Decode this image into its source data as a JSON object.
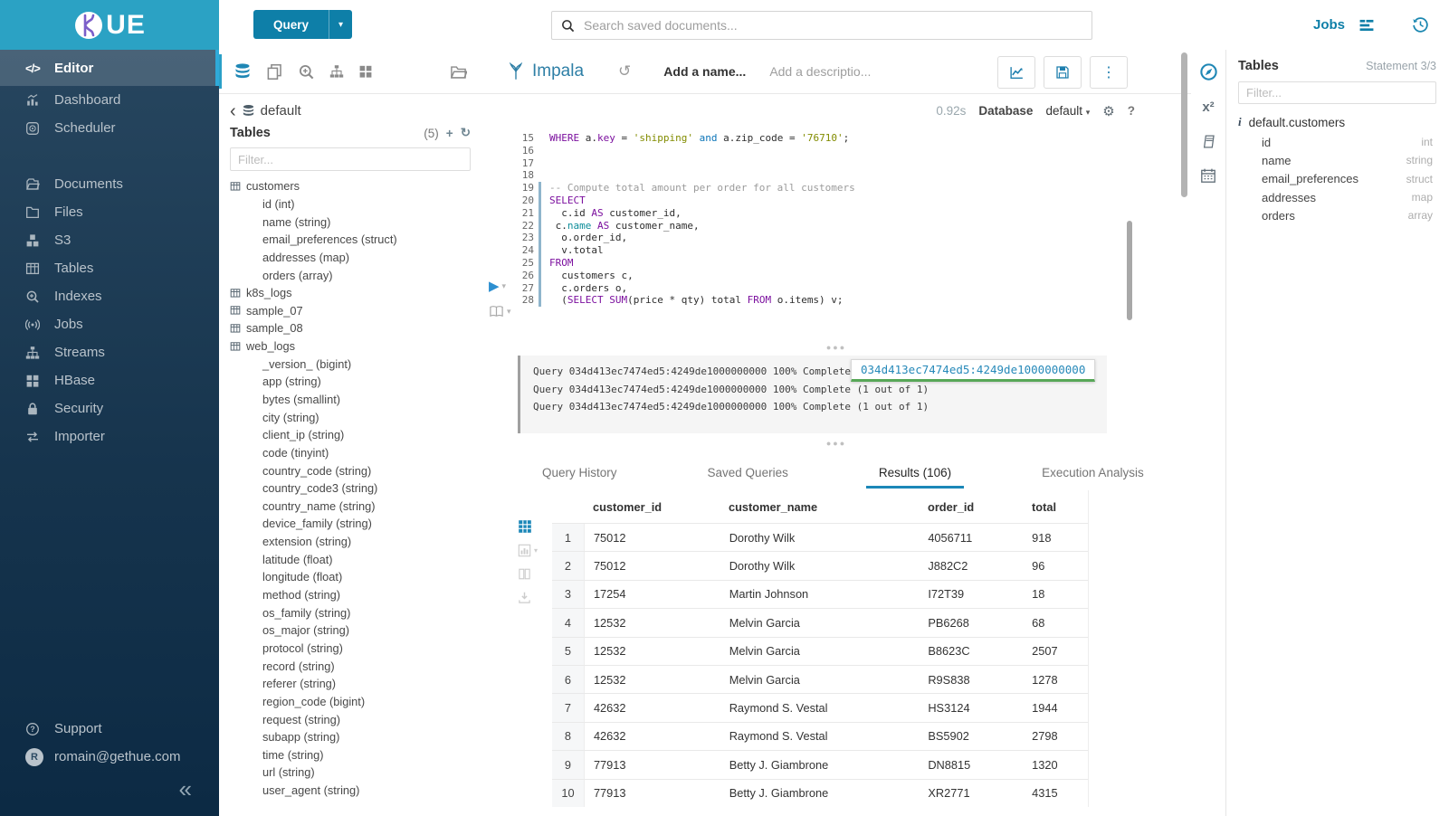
{
  "topbar": {
    "query_label": "Query",
    "query_caret": "▾",
    "search_placeholder": "Search saved documents...",
    "jobs_label": "Jobs"
  },
  "logo": {
    "text": "UE"
  },
  "sidebar": {
    "items": [
      {
        "label": "Editor",
        "icon": "code",
        "state": "active"
      },
      {
        "label": "Dashboard",
        "icon": "dashboard",
        "state": ""
      },
      {
        "label": "Scheduler",
        "icon": "scheduler",
        "state": ""
      },
      {
        "label": "",
        "icon": "",
        "state": "gap"
      },
      {
        "label": "Documents",
        "icon": "documents",
        "state": ""
      },
      {
        "label": "Files",
        "icon": "files",
        "state": ""
      },
      {
        "label": "S3",
        "icon": "s3",
        "state": ""
      },
      {
        "label": "Tables",
        "icon": "tables",
        "state": ""
      },
      {
        "label": "Indexes",
        "icon": "indexes",
        "state": ""
      },
      {
        "label": "Jobs",
        "icon": "jobs",
        "state": ""
      },
      {
        "label": "Streams",
        "icon": "streams",
        "state": ""
      },
      {
        "label": "HBase",
        "icon": "hbase",
        "state": ""
      },
      {
        "label": "Security",
        "icon": "security",
        "state": ""
      },
      {
        "label": "Importer",
        "icon": "importer",
        "state": ""
      }
    ],
    "support_label": "Support",
    "user_email": "romain@gethue.com",
    "user_initial": "R",
    "collapse_glyph": "«"
  },
  "assist": {
    "icons": [
      {
        "icon": "database",
        "state": "active"
      },
      {
        "icon": "copy",
        "state": ""
      },
      {
        "icon": "zoomplus",
        "state": ""
      },
      {
        "icon": "streams",
        "state": ""
      },
      {
        "icon": "hbase",
        "state": ""
      },
      {
        "icon": "foldero",
        "state": "right"
      }
    ],
    "back_glyph": "‹",
    "database_name": "default",
    "tables_label": "Tables",
    "tables_count": "(5)",
    "plus_glyph": "+",
    "refresh_glyph": "↻",
    "filter_placeholder": "Filter...",
    "tree": [
      {
        "label": "customers",
        "icon": "tablegrid",
        "kind": "tbl"
      },
      {
        "label": "id (int)",
        "kind": "col"
      },
      {
        "label": "name (string)",
        "kind": "col"
      },
      {
        "label": "email_preferences (struct)",
        "kind": "col"
      },
      {
        "label": "addresses (map)",
        "kind": "col"
      },
      {
        "label": "orders (array)",
        "kind": "col"
      },
      {
        "label": "k8s_logs",
        "icon": "tablegrid",
        "kind": "tbl"
      },
      {
        "label": "sample_07",
        "icon": "tablegrid",
        "kind": "tbl"
      },
      {
        "label": "sample_08",
        "icon": "tablegrid",
        "kind": "tbl"
      },
      {
        "label": "web_logs",
        "icon": "tablegrid",
        "kind": "tbl"
      },
      {
        "label": "_version_ (bigint)",
        "kind": "col"
      },
      {
        "label": "app (string)",
        "kind": "col"
      },
      {
        "label": "bytes (smallint)",
        "kind": "col"
      },
      {
        "label": "city (string)",
        "kind": "col"
      },
      {
        "label": "client_ip (string)",
        "kind": "col"
      },
      {
        "label": "code (tinyint)",
        "kind": "col"
      },
      {
        "label": "country_code (string)",
        "kind": "col"
      },
      {
        "label": "country_code3 (string)",
        "kind": "col"
      },
      {
        "label": "country_name (string)",
        "kind": "col"
      },
      {
        "label": "device_family (string)",
        "kind": "col"
      },
      {
        "label": "extension (string)",
        "kind": "col"
      },
      {
        "label": "latitude (float)",
        "kind": "col"
      },
      {
        "label": "longitude (float)",
        "kind": "col"
      },
      {
        "label": "method (string)",
        "kind": "col"
      },
      {
        "label": "os_family (string)",
        "kind": "col"
      },
      {
        "label": "os_major (string)",
        "kind": "col"
      },
      {
        "label": "protocol (string)",
        "kind": "col"
      },
      {
        "label": "record (string)",
        "kind": "col"
      },
      {
        "label": "referer (string)",
        "kind": "col"
      },
      {
        "label": "region_code (bigint)",
        "kind": "col"
      },
      {
        "label": "request (string)",
        "kind": "col"
      },
      {
        "label": "subapp (string)",
        "kind": "col"
      },
      {
        "label": "time (string)",
        "kind": "col"
      },
      {
        "label": "url (string)",
        "kind": "col"
      },
      {
        "label": "user_agent (string)",
        "kind": "col"
      }
    ]
  },
  "editor": {
    "engine": "Impala",
    "history_glyph": "↺",
    "name_placeholder": "Add a name...",
    "desc_placeholder": "Add a descriptio...",
    "kebab_glyph": "⋮",
    "duration": "0.92s",
    "database_label": "Database",
    "database_value": "default",
    "database_caret": "▾",
    "gear_glyph": "⚙",
    "help_glyph": "?",
    "run_glyph": "▶",
    "caret_glyph": "▾",
    "handle_glyph": "●●●",
    "lines": [
      {
        "no": "15",
        "stmt": "",
        "tokens": [
          {
            "t": "WHERE",
            "c": "kw"
          },
          {
            "t": " a.",
            "c": "p"
          },
          {
            "t": "key",
            "c": "kw"
          },
          {
            "t": " = ",
            "c": "p"
          },
          {
            "t": "'shipping'",
            "c": "str"
          },
          {
            "t": " ",
            "c": "p"
          },
          {
            "t": "and",
            "c": "kw2"
          },
          {
            "t": " a.zip_code = ",
            "c": "p"
          },
          {
            "t": "'76710'",
            "c": "str"
          },
          {
            "t": ";",
            "c": "p"
          }
        ]
      },
      {
        "no": "16",
        "stmt": "",
        "tokens": []
      },
      {
        "no": "17",
        "stmt": "",
        "tokens": []
      },
      {
        "no": "18",
        "stmt": "",
        "tokens": []
      },
      {
        "no": "19",
        "stmt": "stmt",
        "tokens": [
          {
            "t": "-- Compute total amount per order for all customers",
            "c": "com"
          }
        ]
      },
      {
        "no": "20",
        "stmt": "stmt",
        "tokens": [
          {
            "t": "SELECT",
            "c": "kw"
          }
        ]
      },
      {
        "no": "21",
        "stmt": "stmt",
        "tokens": [
          {
            "t": "  c.id ",
            "c": "p"
          },
          {
            "t": "AS",
            "c": "kw"
          },
          {
            "t": " customer_id,",
            "c": "p"
          }
        ]
      },
      {
        "no": "22",
        "stmt": "stmt",
        "tokens": [
          {
            "t": " c.",
            "c": "p"
          },
          {
            "t": "name",
            "c": "fn"
          },
          {
            "t": " ",
            "c": "p"
          },
          {
            "t": "AS",
            "c": "kw"
          },
          {
            "t": " customer_name,",
            "c": "p"
          }
        ]
      },
      {
        "no": "23",
        "stmt": "stmt",
        "tokens": [
          {
            "t": "  o.order_id,",
            "c": "p"
          }
        ]
      },
      {
        "no": "24",
        "stmt": "stmt",
        "tokens": [
          {
            "t": "  v.total",
            "c": "p"
          }
        ]
      },
      {
        "no": "25",
        "stmt": "stmt",
        "tokens": [
          {
            "t": "FROM",
            "c": "kw"
          }
        ]
      },
      {
        "no": "26",
        "stmt": "stmt",
        "tokens": [
          {
            "t": "  customers c,",
            "c": "p"
          }
        ]
      },
      {
        "no": "27",
        "stmt": "stmt",
        "tokens": [
          {
            "t": "  c.orders o,",
            "c": "p"
          }
        ]
      },
      {
        "no": "28",
        "stmt": "stmt",
        "tokens": [
          {
            "t": "  (",
            "c": "p"
          },
          {
            "t": "SELECT",
            "c": "kw"
          },
          {
            "t": " ",
            "c": "p"
          },
          {
            "t": "SUM",
            "c": "kw"
          },
          {
            "t": "(price * qty) total ",
            "c": "p"
          },
          {
            "t": "FROM",
            "c": "kw"
          },
          {
            "t": " o.items) v;",
            "c": "p"
          }
        ]
      }
    ]
  },
  "log": {
    "lines": [
      {
        "text": "Query 034d413ec7474ed5:4249de1000000000 100% Complete (1 out of 1)"
      },
      {
        "text": "Query 034d413ec7474ed5:4249de1000000000 100% Complete (1 out of 1)"
      },
      {
        "text": "Query 034d413ec7474ed5:4249de1000000000 100% Complete (1 out of 1)"
      }
    ],
    "tooltip": "034d413ec7474ed5:4249de1000000000"
  },
  "tabs": [
    {
      "label": "Query History",
      "state": ""
    },
    {
      "label": "Saved Queries",
      "state": ""
    },
    {
      "label": "Results (106)",
      "state": "active"
    },
    {
      "label": "Execution Analysis",
      "state": ""
    }
  ],
  "results": {
    "rail": [
      {
        "icon": "gridblue",
        "state": "active",
        "caret": ""
      },
      {
        "icon": "chartsm",
        "state": "",
        "caret": "▾"
      },
      {
        "icon": "columnsicon",
        "state": "",
        "caret": ""
      },
      {
        "icon": "downloadicon",
        "state": "",
        "caret": ""
      }
    ],
    "columns": [
      "customer_id",
      "customer_name",
      "order_id",
      "total"
    ],
    "rows": [
      {
        "n": "1",
        "customer_id": "75012",
        "customer_name": "Dorothy Wilk",
        "order_id": "4056711",
        "total": "918"
      },
      {
        "n": "2",
        "customer_id": "75012",
        "customer_name": "Dorothy Wilk",
        "order_id": "J882C2",
        "total": "96"
      },
      {
        "n": "3",
        "customer_id": "17254",
        "customer_name": "Martin Johnson",
        "order_id": "I72T39",
        "total": "18"
      },
      {
        "n": "4",
        "customer_id": "12532",
        "customer_name": "Melvin Garcia",
        "order_id": "PB6268",
        "total": "68"
      },
      {
        "n": "5",
        "customer_id": "12532",
        "customer_name": "Melvin Garcia",
        "order_id": "B8623C",
        "total": "2507"
      },
      {
        "n": "6",
        "customer_id": "12532",
        "customer_name": "Melvin Garcia",
        "order_id": "R9S838",
        "total": "1278"
      },
      {
        "n": "7",
        "customer_id": "42632",
        "customer_name": "Raymond S. Vestal",
        "order_id": "HS3124",
        "total": "1944"
      },
      {
        "n": "8",
        "customer_id": "42632",
        "customer_name": "Raymond S. Vestal",
        "order_id": "BS5902",
        "total": "2798"
      },
      {
        "n": "9",
        "customer_id": "77913",
        "customer_name": "Betty J. Giambrone",
        "order_id": "DN8815",
        "total": "1320"
      },
      {
        "n": "10",
        "customer_id": "77913",
        "customer_name": "Betty J. Giambrone",
        "order_id": "XR2771",
        "total": "4315"
      }
    ]
  },
  "rightbar": {
    "rail": [
      {
        "icon": "compass",
        "state": "active"
      },
      {
        "icon": "x2text",
        "state": ""
      },
      {
        "icon": "book",
        "state": ""
      },
      {
        "icon": "calendar",
        "state": ""
      }
    ],
    "title": "Tables",
    "statement": "Statement 3/3",
    "filter_placeholder": "Filter...",
    "info_glyph": "i",
    "table_name": "default.customers",
    "columns": [
      {
        "name": "id",
        "type": "int"
      },
      {
        "name": "name",
        "type": "string"
      },
      {
        "name": "email_preferences",
        "type": "struct"
      },
      {
        "name": "addresses",
        "type": "map"
      },
      {
        "name": "orders",
        "type": "array"
      }
    ]
  },
  "colors": {
    "brand_cyan": "#2ba2c4",
    "button_blue": "#0e7fa8",
    "accent_blue": "#1b87b8",
    "nav_dark_top": "#27465f",
    "nav_dark_bottom": "#0c2a44",
    "tooltip_green": "#57a757",
    "keyword_purple": "#7b0f9e",
    "string_olive": "#828c00"
  }
}
